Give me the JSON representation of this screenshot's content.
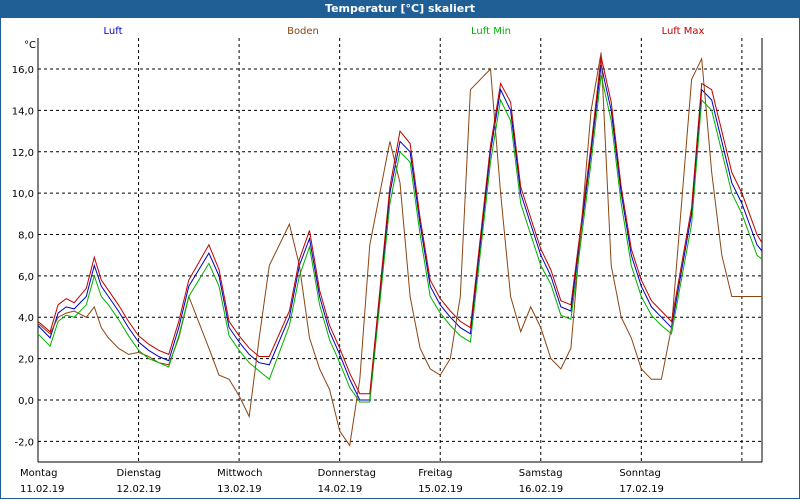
{
  "window": {
    "title": "Temperatur [°C] skaliert",
    "accent_color": "#1f5f96"
  },
  "chart_data": {
    "type": "line",
    "title": "Temperatur [°C] skaliert",
    "ylabel": "°C",
    "xlabel": "",
    "ylim": [
      -3.0,
      17.5
    ],
    "grid": true,
    "y_ticks": [
      "16,0",
      "14,0",
      "12,0",
      "10,0",
      "8,0",
      "6,0",
      "4,0",
      "2,0",
      "0,0",
      "-2,0"
    ],
    "y_tick_values": [
      16,
      14,
      12,
      10,
      8,
      6,
      4,
      2,
      0,
      -2
    ],
    "days": [
      {
        "weekday": "Montag",
        "date": "11.02.19"
      },
      {
        "weekday": "Dienstag",
        "date": "12.02.19"
      },
      {
        "weekday": "Mittwoch",
        "date": "13.02.19"
      },
      {
        "weekday": "Donnerstag",
        "date": "14.02.19"
      },
      {
        "weekday": "Freitag",
        "date": "15.02.19"
      },
      {
        "weekday": "Samstag",
        "date": "16.02.19"
      },
      {
        "weekday": "Sonntag",
        "date": "17.02.19"
      }
    ],
    "x_unit": "days since 11.02.19 00:00",
    "legend_placement": "top",
    "series": [
      {
        "name": "Luft",
        "color": "#0000c0",
        "x": [
          0.0,
          0.12,
          0.2,
          0.28,
          0.36,
          0.48,
          0.56,
          0.63,
          0.7,
          0.8,
          0.9,
          1.0,
          1.1,
          1.2,
          1.3,
          1.4,
          1.5,
          1.7,
          1.8,
          1.9,
          2.0,
          2.1,
          2.2,
          2.3,
          2.5,
          2.6,
          2.7,
          2.8,
          2.9,
          3.0,
          3.1,
          3.2,
          3.3,
          3.5,
          3.6,
          3.7,
          3.8,
          3.9,
          4.0,
          4.1,
          4.2,
          4.3,
          4.5,
          4.6,
          4.7,
          4.8,
          4.9,
          5.0,
          5.1,
          5.2,
          5.3,
          5.5,
          5.6,
          5.7,
          5.8,
          5.9,
          6.0,
          6.1,
          6.2,
          6.3,
          6.5,
          6.6,
          6.7,
          6.8,
          6.9,
          7.0,
          7.15,
          7.2
        ],
        "y": [
          3.6,
          3.0,
          4.2,
          4.5,
          4.4,
          5.0,
          6.5,
          5.5,
          5.0,
          4.3,
          3.5,
          2.8,
          2.4,
          2.1,
          1.9,
          3.5,
          5.5,
          7.1,
          6.0,
          3.5,
          2.8,
          2.2,
          1.8,
          1.7,
          4.0,
          6.5,
          7.8,
          5.0,
          3.3,
          2.2,
          1.0,
          0.0,
          0.0,
          10.0,
          12.5,
          12.0,
          8.5,
          5.5,
          4.6,
          4.0,
          3.5,
          3.2,
          12.0,
          15.0,
          14.0,
          10.0,
          8.5,
          7.0,
          6.0,
          4.5,
          4.3,
          12.0,
          16.2,
          14.0,
          10.0,
          7.0,
          5.5,
          4.5,
          4.0,
          3.5,
          9.0,
          15.0,
          14.5,
          12.5,
          10.5,
          9.5,
          7.5,
          7.2
        ]
      },
      {
        "name": "Boden",
        "color": "#8b4513",
        "x": [
          0.0,
          0.12,
          0.2,
          0.28,
          0.36,
          0.48,
          0.56,
          0.63,
          0.7,
          0.8,
          0.9,
          1.0,
          1.1,
          1.2,
          1.3,
          1.4,
          1.5,
          1.7,
          1.8,
          1.9,
          2.0,
          2.1,
          2.2,
          2.3,
          2.5,
          2.6,
          2.7,
          2.8,
          2.9,
          3.0,
          3.1,
          3.2,
          3.3,
          3.5,
          3.6,
          3.7,
          3.8,
          3.9,
          4.0,
          4.1,
          4.2,
          4.3,
          4.5,
          4.6,
          4.7,
          4.8,
          4.9,
          5.0,
          5.1,
          5.2,
          5.3,
          5.5,
          5.6,
          5.7,
          5.8,
          5.9,
          6.0,
          6.1,
          6.2,
          6.3,
          6.5,
          6.6,
          6.7,
          6.8,
          6.9,
          7.0,
          7.15,
          7.2
        ],
        "y": [
          3.7,
          3.2,
          4.0,
          4.2,
          4.3,
          4.0,
          4.5,
          3.5,
          3.0,
          2.5,
          2.2,
          2.3,
          2.1,
          1.8,
          1.7,
          3.0,
          5.0,
          2.5,
          1.2,
          1.0,
          0.2,
          -0.8,
          3.0,
          6.5,
          8.5,
          6.5,
          3.0,
          1.5,
          0.5,
          -1.5,
          -2.2,
          1.0,
          7.5,
          12.5,
          10.5,
          5.0,
          2.5,
          1.5,
          1.2,
          2.0,
          5.0,
          15.0,
          16.0,
          10.0,
          5.0,
          3.3,
          4.5,
          3.5,
          2.0,
          1.5,
          2.5,
          14.0,
          16.8,
          6.5,
          4.0,
          3.0,
          1.5,
          1.0,
          1.0,
          3.5,
          15.5,
          16.5,
          11.0,
          7.0,
          5.0,
          5.0,
          5.0,
          5.0
        ]
      },
      {
        "name": "Luft Min",
        "color": "#00b000",
        "x": [
          0.0,
          0.12,
          0.2,
          0.28,
          0.36,
          0.48,
          0.56,
          0.63,
          0.7,
          0.8,
          0.9,
          1.0,
          1.1,
          1.2,
          1.3,
          1.4,
          1.5,
          1.7,
          1.8,
          1.9,
          2.0,
          2.1,
          2.2,
          2.3,
          2.5,
          2.6,
          2.7,
          2.8,
          2.9,
          3.0,
          3.1,
          3.2,
          3.3,
          3.5,
          3.6,
          3.7,
          3.8,
          3.9,
          4.0,
          4.1,
          4.2,
          4.3,
          4.5,
          4.6,
          4.7,
          4.8,
          4.9,
          5.0,
          5.1,
          5.2,
          5.3,
          5.5,
          5.6,
          5.7,
          5.8,
          5.9,
          6.0,
          6.1,
          6.2,
          6.3,
          6.5,
          6.6,
          6.7,
          6.8,
          6.9,
          7.0,
          7.15,
          7.2
        ],
        "y": [
          3.2,
          2.6,
          3.8,
          4.1,
          4.0,
          4.6,
          6.0,
          5.0,
          4.6,
          3.9,
          3.1,
          2.4,
          2.0,
          1.8,
          1.6,
          3.1,
          5.0,
          6.6,
          5.5,
          3.1,
          2.4,
          1.8,
          1.4,
          1.0,
          3.6,
          6.0,
          7.4,
          4.6,
          2.9,
          1.8,
          0.6,
          -0.1,
          -0.1,
          9.5,
          12.0,
          11.5,
          8.0,
          5.0,
          4.2,
          3.6,
          3.1,
          2.8,
          11.5,
          14.5,
          13.5,
          9.5,
          8.0,
          6.5,
          5.6,
          4.1,
          3.9,
          11.5,
          15.7,
          13.5,
          9.5,
          6.5,
          5.0,
          4.1,
          3.6,
          3.2,
          8.5,
          14.5,
          14.0,
          12.0,
          10.0,
          9.0,
          7.0,
          6.8
        ]
      },
      {
        "name": "Luft Max",
        "color": "#c00000",
        "x": [
          0.0,
          0.12,
          0.2,
          0.28,
          0.36,
          0.48,
          0.56,
          0.63,
          0.7,
          0.8,
          0.9,
          1.0,
          1.1,
          1.2,
          1.3,
          1.4,
          1.5,
          1.7,
          1.8,
          1.9,
          2.0,
          2.1,
          2.2,
          2.3,
          2.5,
          2.6,
          2.7,
          2.8,
          2.9,
          3.0,
          3.1,
          3.2,
          3.3,
          3.5,
          3.6,
          3.7,
          3.8,
          3.9,
          4.0,
          4.1,
          4.2,
          4.3,
          4.5,
          4.6,
          4.7,
          4.8,
          4.9,
          5.0,
          5.1,
          5.2,
          5.3,
          5.5,
          5.6,
          5.7,
          5.8,
          5.9,
          6.0,
          6.1,
          6.2,
          6.3,
          6.5,
          6.6,
          6.7,
          6.8,
          6.9,
          7.0,
          7.15,
          7.2
        ],
        "y": [
          3.8,
          3.3,
          4.6,
          4.9,
          4.7,
          5.4,
          6.9,
          5.8,
          5.3,
          4.6,
          3.8,
          3.1,
          2.7,
          2.4,
          2.2,
          3.8,
          5.8,
          7.5,
          6.3,
          3.8,
          3.1,
          2.5,
          2.1,
          2.1,
          4.3,
          6.8,
          8.2,
          5.3,
          3.6,
          2.5,
          1.3,
          0.3,
          0.3,
          10.3,
          13.0,
          12.4,
          8.8,
          5.8,
          4.9,
          4.3,
          3.8,
          3.5,
          12.3,
          15.3,
          14.4,
          10.3,
          8.8,
          7.3,
          6.3,
          4.8,
          4.6,
          12.3,
          16.6,
          14.4,
          10.3,
          7.3,
          5.8,
          4.8,
          4.3,
          3.8,
          9.3,
          15.3,
          15.0,
          13.0,
          11.0,
          10.0,
          8.0,
          7.6
        ]
      }
    ]
  }
}
